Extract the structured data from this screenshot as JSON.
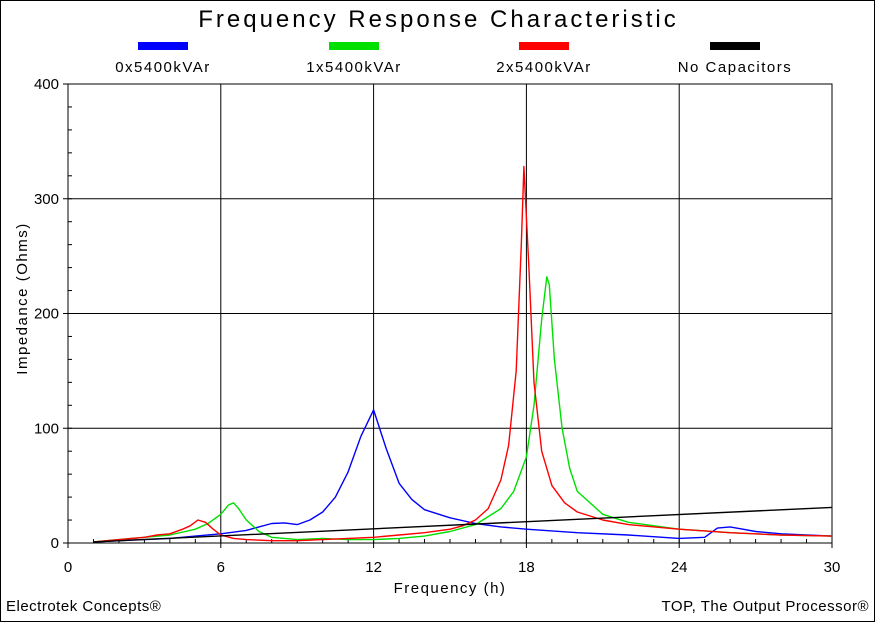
{
  "chart_data": {
    "type": "line",
    "title": "Frequency Response Characteristic",
    "xlabel": "Frequency (h)",
    "ylabel": "Impedance (Ohms)",
    "xlim": [
      0,
      30
    ],
    "ylim": [
      0,
      400
    ],
    "xticks": [
      0,
      6,
      12,
      18,
      24,
      30
    ],
    "yticks": [
      0,
      100,
      200,
      300,
      400
    ],
    "grid": true,
    "legend_position": "top",
    "series": [
      {
        "name": "0x5400kVAr",
        "color": "#0000ff",
        "x": [
          1,
          2,
          3,
          4,
          5,
          6,
          7,
          7.5,
          8,
          8.5,
          9,
          9.5,
          10,
          10.5,
          11,
          11.5,
          12,
          12.5,
          13,
          13.5,
          14,
          15,
          16,
          17,
          18,
          20,
          22,
          24,
          25,
          25.5,
          26,
          26.5,
          27,
          28,
          29,
          30
        ],
        "y": [
          1,
          2,
          3,
          4,
          6,
          8,
          11,
          14,
          17,
          17.5,
          16,
          20,
          27,
          40,
          62,
          93,
          116,
          82,
          52,
          38,
          29,
          22,
          17,
          14,
          12,
          9,
          7,
          4,
          5,
          13,
          14,
          12,
          10,
          8,
          7,
          6
        ]
      },
      {
        "name": "1x5400kVAr",
        "color": "#00e000",
        "x": [
          1,
          2,
          3,
          4,
          5,
          5.5,
          6,
          6.3,
          6.5,
          6.7,
          7,
          7.5,
          8,
          9,
          10,
          11,
          12,
          13,
          14,
          15,
          16,
          17,
          17.5,
          18,
          18.3,
          18.6,
          18.8,
          18.9,
          19.1,
          19.4,
          19.7,
          20,
          21,
          22,
          24,
          26,
          28,
          30
        ],
        "y": [
          1,
          3,
          5,
          7,
          12,
          17,
          25,
          33,
          35,
          30,
          20,
          10,
          5,
          3,
          4,
          3,
          3,
          4,
          6,
          10,
          16,
          30,
          45,
          75,
          120,
          195,
          232,
          225,
          160,
          100,
          65,
          45,
          25,
          18,
          12,
          9,
          7,
          6
        ]
      },
      {
        "name": "2x5400kVAr",
        "color": "#ff0000",
        "x": [
          1,
          2,
          3,
          3.5,
          4,
          4.5,
          4.8,
          5.1,
          5.4,
          5.7,
          6,
          6.5,
          7,
          8,
          9,
          10,
          11,
          12,
          13,
          14,
          15,
          15.5,
          16,
          16.5,
          17,
          17.3,
          17.6,
          17.8,
          17.9,
          18.1,
          18.3,
          18.6,
          19,
          19.5,
          20,
          21,
          22,
          24,
          26,
          28,
          30
        ],
        "y": [
          1,
          3,
          5,
          7,
          8,
          12,
          15,
          20,
          18,
          12,
          7,
          4,
          3,
          2,
          2,
          3,
          4,
          5,
          7,
          9,
          12,
          15,
          20,
          30,
          55,
          85,
          150,
          260,
          328,
          240,
          140,
          80,
          50,
          35,
          27,
          20,
          16,
          12,
          9,
          7,
          6
        ]
      },
      {
        "name": "No Capacitors",
        "color": "#000000",
        "x": [
          1,
          30
        ],
        "y": [
          1,
          31
        ]
      }
    ]
  },
  "footer": {
    "left": "Electrotek Concepts®",
    "right": "TOP, The Output Processor®"
  }
}
